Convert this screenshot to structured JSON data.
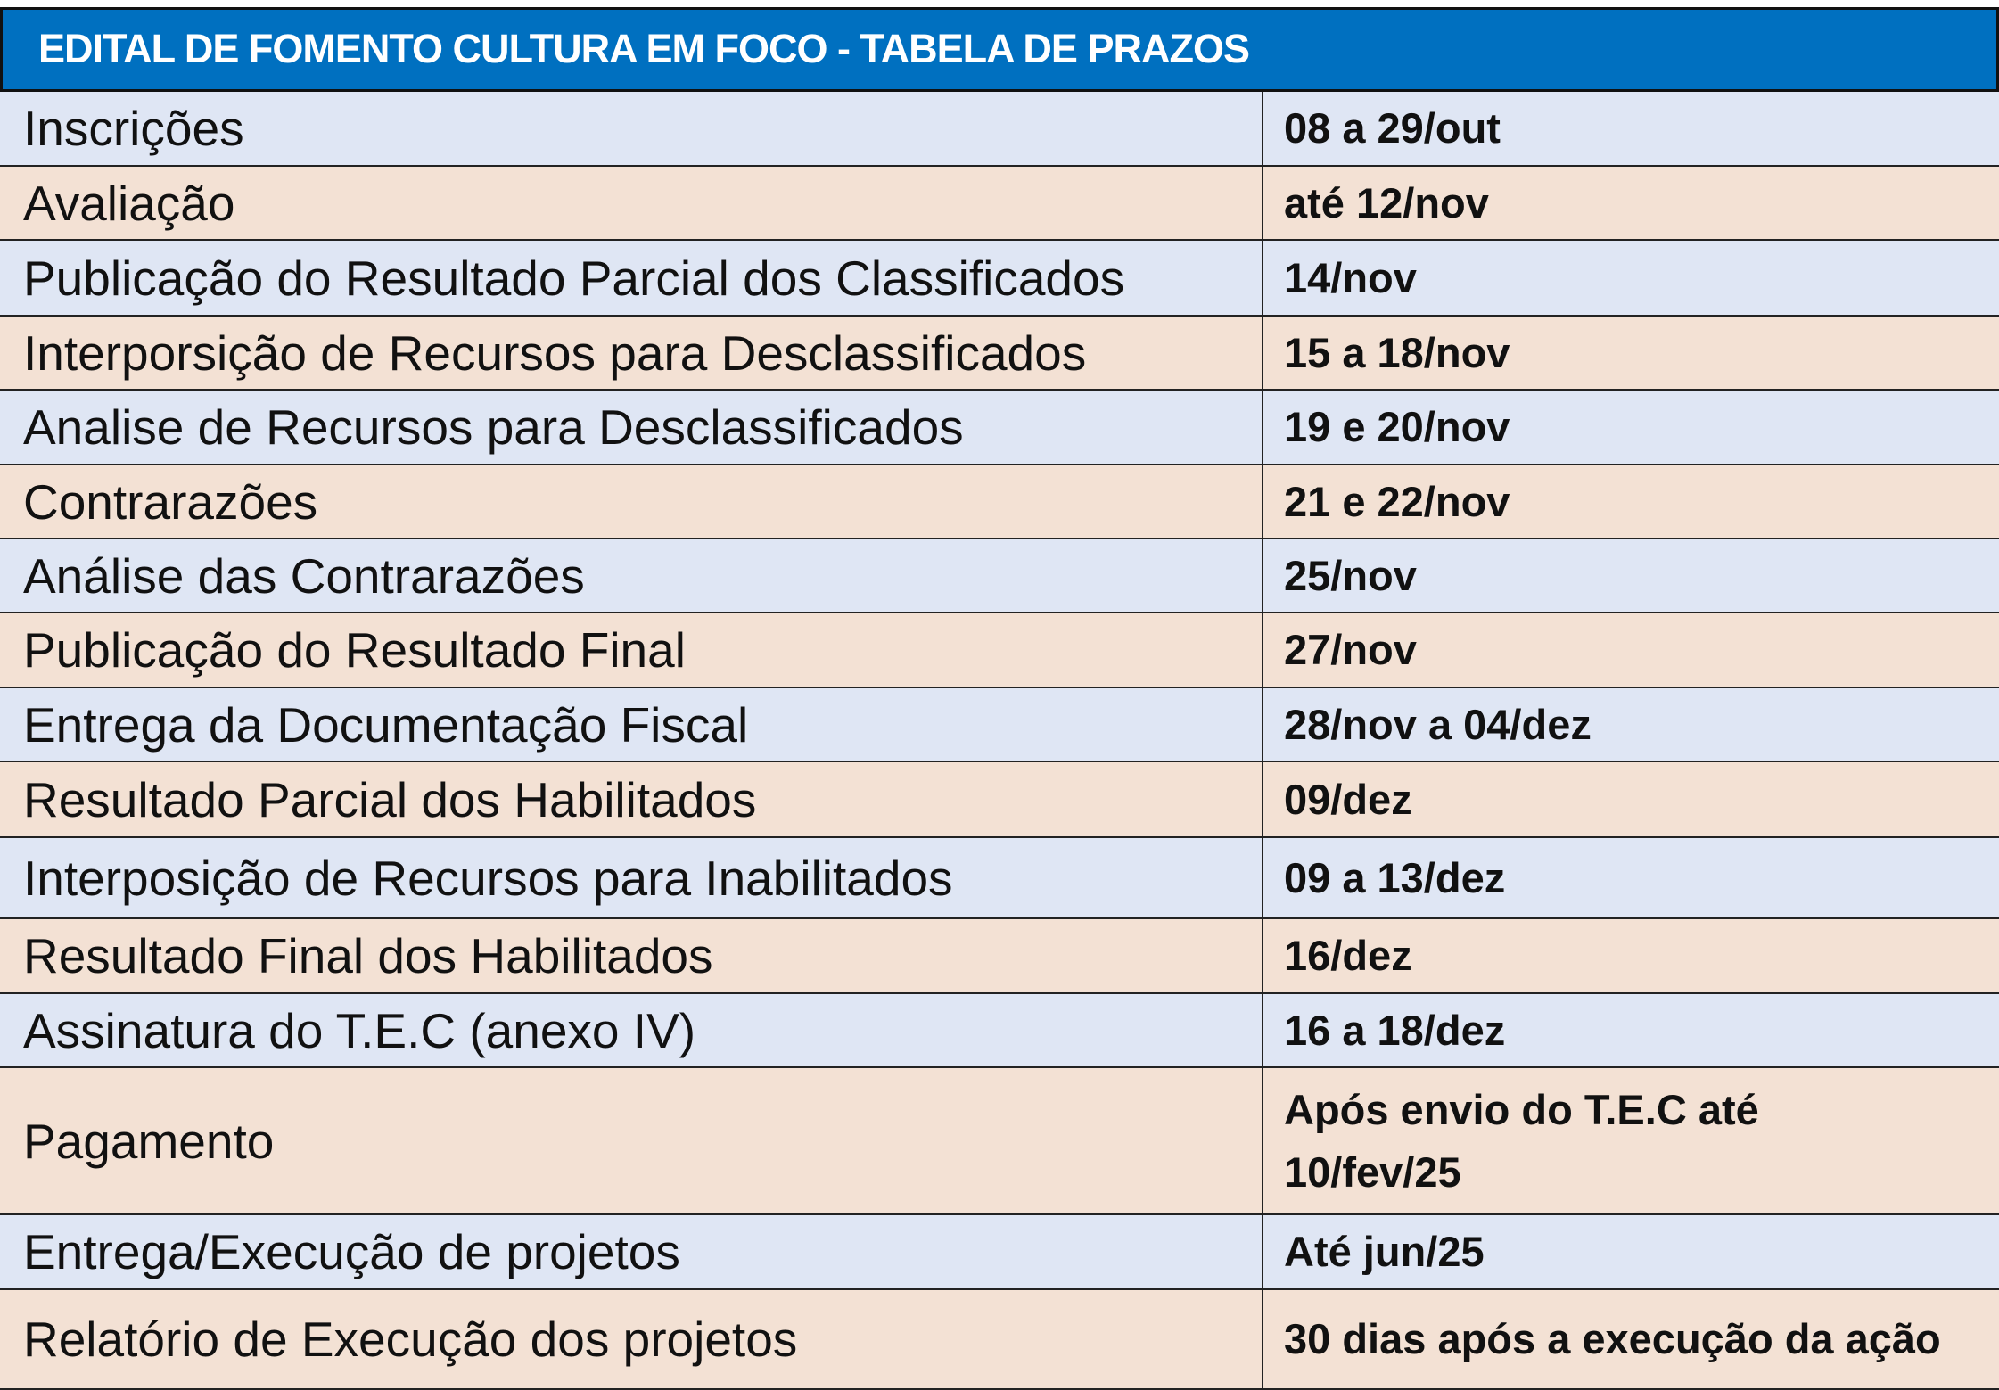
{
  "title": "EDITAL DE FOMENTO CULTURA EM FOCO - TABELA DE PRAZOS",
  "colors": {
    "header": "#0070C0",
    "row_blue": "#DFE6F4",
    "row_peach": "#F3E1D4"
  },
  "rows": [
    {
      "label": "Inscrições",
      "deadline": "08 a 29/out"
    },
    {
      "label": "Avaliação",
      "deadline": "até 12/nov"
    },
    {
      "label": "Publicação do Resultado Parcial dos Classificados",
      "deadline": "14/nov"
    },
    {
      "label": "Interporsição de Recursos para Desclassificados",
      "deadline": "15 a 18/nov"
    },
    {
      "label": "Analise de Recursos para Desclassificados",
      "deadline": "19 e 20/nov"
    },
    {
      "label": "Contrarazões",
      "deadline": "21 e 22/nov"
    },
    {
      "label": "Análise das Contrarazões",
      "deadline": "25/nov"
    },
    {
      "label": "Publicação do Resultado Final",
      "deadline": "27/nov"
    },
    {
      "label": "Entrega da Documentação Fiscal",
      "deadline": "28/nov a 04/dez"
    },
    {
      "label": "Resultado Parcial dos Habilitados",
      "deadline": "09/dez"
    },
    {
      "label": "Interposição de Recursos para Inabilitados",
      "deadline": "09 a 13/dez"
    },
    {
      "label": "Resultado Final dos Habilitados",
      "deadline": "16/dez"
    },
    {
      "label": "Assinatura do T.E.C (anexo IV)",
      "deadline": "16 a 18/dez"
    },
    {
      "label": "Pagamento",
      "deadline": "Após envio do T.E.C até 10/fev/25"
    },
    {
      "label": "Entrega/Execução de projetos",
      "deadline": "Até jun/25"
    },
    {
      "label": "Relatório de Execução dos projetos",
      "deadline": "30 dias após a execução da ação"
    }
  ]
}
